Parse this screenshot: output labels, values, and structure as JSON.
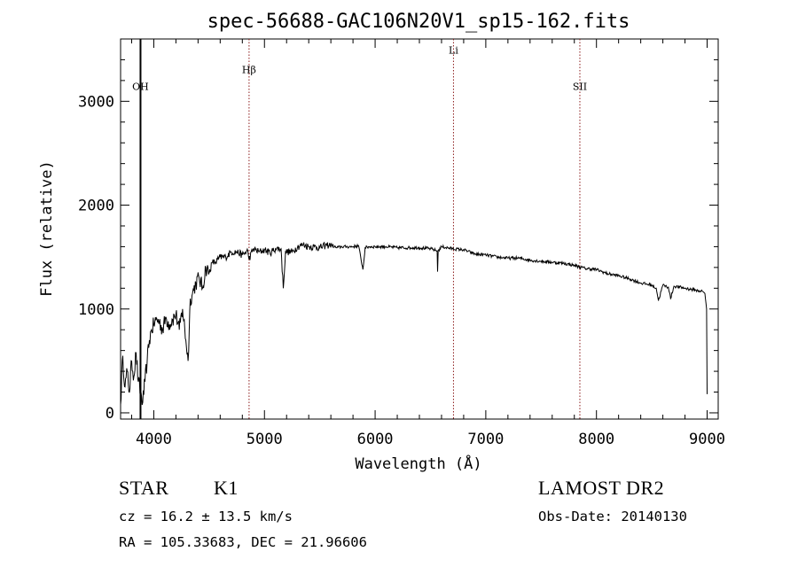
{
  "chart_data": {
    "type": "line",
    "title": "spec-56688-GAC106N20V1_sp15-162.fits",
    "xlabel": "Wavelength (Å)",
    "ylabel": "Flux (relative)",
    "xlim": [
      3700,
      9100
    ],
    "ylim": [
      -60,
      3600
    ],
    "xticks": [
      4000,
      5000,
      6000,
      7000,
      8000,
      9000
    ],
    "yticks": [
      0,
      1000,
      2000,
      3000
    ],
    "xtick_labels": [
      "4000",
      "5000",
      "6000",
      "7000",
      "8000",
      "9000"
    ],
    "ytick_labels": [
      "0",
      "1000",
      "2000",
      "3000"
    ],
    "series": [
      {
        "x": [
          3700,
          3720,
          3740,
          3760,
          3780,
          3800,
          3820,
          3840,
          3860,
          3880,
          3900,
          3920,
          3940,
          3960,
          3980,
          4000,
          4020,
          4050,
          4080,
          4110,
          4140,
          4170,
          4200,
          4230,
          4260,
          4290,
          4310,
          4330,
          4350,
          4380,
          4410,
          4440,
          4470,
          4500,
          4530,
          4560,
          4600,
          4650,
          4700,
          4750,
          4800,
          4850,
          4860,
          4900,
          4950,
          5000,
          5050,
          5100,
          5150,
          5170,
          5190,
          5250,
          5300,
          5350,
          5400,
          5450,
          5500,
          5550,
          5600,
          5650,
          5700,
          5750,
          5800,
          5850,
          5890,
          5910,
          5950,
          6000,
          6100,
          6200,
          6300,
          6400,
          6500,
          6560,
          6564,
          6570,
          6600,
          6700,
          6800,
          6900,
          7000,
          7100,
          7200,
          7300,
          7400,
          7500,
          7600,
          7700,
          7800,
          7900,
          8000,
          8100,
          8200,
          8300,
          8400,
          8500,
          8540,
          8560,
          8600,
          8650,
          8670,
          8700,
          8800,
          8900,
          8960,
          8980,
          8995,
          9000
        ],
        "y": [
          80,
          550,
          250,
          400,
          200,
          500,
          350,
          580,
          300,
          200,
          100,
          300,
          500,
          700,
          800,
          850,
          900,
          880,
          800,
          920,
          850,
          900,
          950,
          800,
          1000,
          700,
          500,
          1100,
          1150,
          1250,
          1300,
          1200,
          1400,
          1350,
          1450,
          1450,
          1500,
          1500,
          1550,
          1550,
          1520,
          1560,
          1480,
          1580,
          1550,
          1570,
          1540,
          1580,
          1580,
          1200,
          1550,
          1550,
          1600,
          1620,
          1600,
          1600,
          1590,
          1610,
          1620,
          1590,
          1600,
          1600,
          1600,
          1610,
          1380,
          1590,
          1600,
          1600,
          1600,
          1590,
          1590,
          1590,
          1580,
          1560,
          1360,
          1560,
          1600,
          1580,
          1570,
          1530,
          1520,
          1500,
          1490,
          1490,
          1470,
          1460,
          1450,
          1440,
          1420,
          1390,
          1380,
          1340,
          1320,
          1290,
          1250,
          1230,
          1200,
          1080,
          1230,
          1210,
          1100,
          1220,
          1200,
          1180,
          1170,
          1150,
          1000,
          180
        ]
      }
    ],
    "line_markers": [
      {
        "label": "OH",
        "x": 3880,
        "style": "solid",
        "label_flux": 3110
      },
      {
        "label": "Hβ",
        "x": 4861,
        "style": "dotted",
        "label_flux": 3270
      },
      {
        "label": "Li",
        "x": 6708,
        "style": "dotted",
        "label_flux": 3460
      },
      {
        "label": "SII",
        "x": 7850,
        "style": "dotted",
        "label_flux": 3110
      }
    ]
  },
  "info": {
    "object_class": "STAR",
    "subclass": "K1",
    "survey": "LAMOST DR2",
    "redshift": "cz = 16.2 ± 13.5 km/s",
    "obs_date": "Obs-Date: 20140130",
    "coordinates": "RA = 105.33683, DEC =  21.96606"
  },
  "colors": {
    "spectrum": "#000000",
    "marker_line": "#8b1a1a",
    "axes": "#000000",
    "background": "#ffffff"
  }
}
